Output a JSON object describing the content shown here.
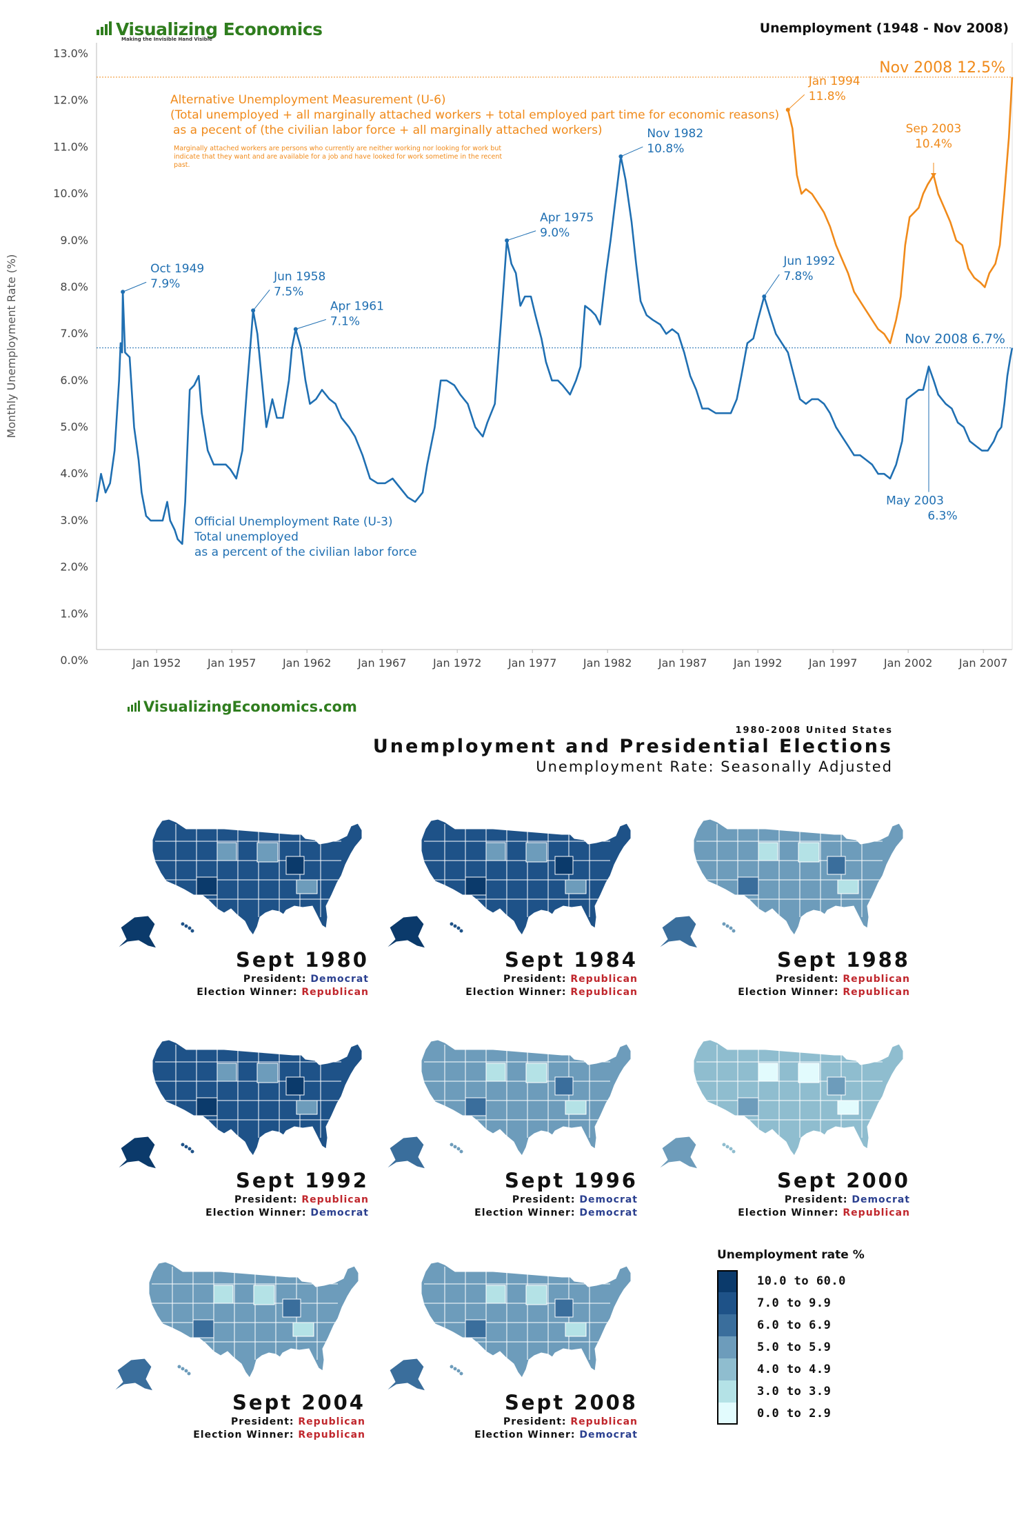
{
  "header": {
    "logo_text": "Visualizing Economics",
    "logo_tagline": "Making the Invisible Hand Visible",
    "chart_title": "Unemployment (1948 - Nov 2008)"
  },
  "chart_data": {
    "type": "line",
    "ylabel": "Monthly Unemployment Rate (%)",
    "ylim": [
      0,
      13
    ],
    "y_ticks": [
      "0.0%",
      "1.0%",
      "2.0%",
      "3.0%",
      "4.0%",
      "5.0%",
      "6.0%",
      "7.0%",
      "8.0%",
      "9.0%",
      "10.0%",
      "11.0%",
      "12.0%",
      "13.0%"
    ],
    "x_ticks": [
      "Jan 1952",
      "Jan 1957",
      "Jan 1962",
      "Jan 1967",
      "Jan 1972",
      "Jan 1977",
      "Jan 1982",
      "Jan 1987",
      "Jan 1992",
      "Jan 1997",
      "Jan 2002",
      "Jan 2007"
    ],
    "x_tick_years": [
      1952,
      1957,
      1962,
      1967,
      1972,
      1977,
      1982,
      1987,
      1992,
      1997,
      2002,
      2007
    ],
    "xlim": [
      1948.0,
      2008.92
    ],
    "series": [
      {
        "color": "#1f6fb2",
        "points": [
          [
            1948.0,
            3.4
          ],
          [
            1948.3,
            4.0
          ],
          [
            1948.6,
            3.6
          ],
          [
            1948.9,
            3.8
          ],
          [
            1949.2,
            4.5
          ],
          [
            1949.5,
            6.0
          ],
          [
            1949.6,
            6.8
          ],
          [
            1949.7,
            6.6
          ],
          [
            1949.75,
            7.9
          ],
          [
            1949.9,
            6.6
          ],
          [
            1950.2,
            6.5
          ],
          [
            1950.5,
            5.0
          ],
          [
            1950.8,
            4.3
          ],
          [
            1951.0,
            3.6
          ],
          [
            1951.3,
            3.1
          ],
          [
            1951.6,
            3.0
          ],
          [
            1952.0,
            3.0
          ],
          [
            1952.4,
            3.0
          ],
          [
            1952.7,
            3.4
          ],
          [
            1952.9,
            3.0
          ],
          [
            1953.2,
            2.8
          ],
          [
            1953.4,
            2.6
          ],
          [
            1953.7,
            2.5
          ],
          [
            1953.9,
            3.4
          ],
          [
            1954.2,
            5.8
          ],
          [
            1954.5,
            5.9
          ],
          [
            1954.8,
            6.1
          ],
          [
            1955.0,
            5.3
          ],
          [
            1955.4,
            4.5
          ],
          [
            1955.8,
            4.2
          ],
          [
            1956.2,
            4.2
          ],
          [
            1956.6,
            4.2
          ],
          [
            1956.9,
            4.1
          ],
          [
            1957.3,
            3.9
          ],
          [
            1957.7,
            4.5
          ],
          [
            1958.0,
            5.8
          ],
          [
            1958.3,
            7.0
          ],
          [
            1958.42,
            7.5
          ],
          [
            1958.7,
            7.0
          ],
          [
            1959.0,
            6.0
          ],
          [
            1959.3,
            5.0
          ],
          [
            1959.7,
            5.6
          ],
          [
            1960.0,
            5.2
          ],
          [
            1960.4,
            5.2
          ],
          [
            1960.8,
            6.0
          ],
          [
            1961.0,
            6.7
          ],
          [
            1961.25,
            7.1
          ],
          [
            1961.6,
            6.7
          ],
          [
            1961.9,
            6.0
          ],
          [
            1962.2,
            5.5
          ],
          [
            1962.6,
            5.6
          ],
          [
            1963.0,
            5.8
          ],
          [
            1963.5,
            5.6
          ],
          [
            1963.9,
            5.5
          ],
          [
            1964.3,
            5.2
          ],
          [
            1964.8,
            5.0
          ],
          [
            1965.2,
            4.8
          ],
          [
            1965.7,
            4.4
          ],
          [
            1966.2,
            3.9
          ],
          [
            1966.7,
            3.8
          ],
          [
            1967.2,
            3.8
          ],
          [
            1967.7,
            3.9
          ],
          [
            1968.2,
            3.7
          ],
          [
            1968.7,
            3.5
          ],
          [
            1969.2,
            3.4
          ],
          [
            1969.7,
            3.6
          ],
          [
            1970.0,
            4.2
          ],
          [
            1970.5,
            5.0
          ],
          [
            1970.9,
            6.0
          ],
          [
            1971.3,
            6.0
          ],
          [
            1971.8,
            5.9
          ],
          [
            1972.2,
            5.7
          ],
          [
            1972.7,
            5.5
          ],
          [
            1973.2,
            5.0
          ],
          [
            1973.7,
            4.8
          ],
          [
            1974.0,
            5.1
          ],
          [
            1974.5,
            5.5
          ],
          [
            1974.9,
            7.2
          ],
          [
            1975.1,
            8.1
          ],
          [
            1975.3,
            9.0
          ],
          [
            1975.6,
            8.5
          ],
          [
            1975.9,
            8.3
          ],
          [
            1976.2,
            7.6
          ],
          [
            1976.5,
            7.8
          ],
          [
            1976.9,
            7.8
          ],
          [
            1977.2,
            7.4
          ],
          [
            1977.6,
            6.9
          ],
          [
            1977.9,
            6.4
          ],
          [
            1978.3,
            6.0
          ],
          [
            1978.7,
            6.0
          ],
          [
            1979.0,
            5.9
          ],
          [
            1979.5,
            5.7
          ],
          [
            1979.9,
            6.0
          ],
          [
            1980.2,
            6.3
          ],
          [
            1980.5,
            7.6
          ],
          [
            1980.9,
            7.5
          ],
          [
            1981.2,
            7.4
          ],
          [
            1981.5,
            7.2
          ],
          [
            1981.9,
            8.3
          ],
          [
            1982.2,
            9.0
          ],
          [
            1982.5,
            9.8
          ],
          [
            1982.88,
            10.8
          ],
          [
            1983.2,
            10.3
          ],
          [
            1983.6,
            9.4
          ],
          [
            1983.9,
            8.5
          ],
          [
            1984.2,
            7.7
          ],
          [
            1984.6,
            7.4
          ],
          [
            1985.0,
            7.3
          ],
          [
            1985.5,
            7.2
          ],
          [
            1985.9,
            7.0
          ],
          [
            1986.3,
            7.1
          ],
          [
            1986.7,
            7.0
          ],
          [
            1987.1,
            6.6
          ],
          [
            1987.5,
            6.1
          ],
          [
            1987.9,
            5.8
          ],
          [
            1988.3,
            5.4
          ],
          [
            1988.7,
            5.4
          ],
          [
            1989.2,
            5.3
          ],
          [
            1989.7,
            5.3
          ],
          [
            1990.2,
            5.3
          ],
          [
            1990.6,
            5.6
          ],
          [
            1990.9,
            6.1
          ],
          [
            1991.3,
            6.8
          ],
          [
            1991.7,
            6.9
          ],
          [
            1992.0,
            7.3
          ],
          [
            1992.42,
            7.8
          ],
          [
            1992.8,
            7.4
          ],
          [
            1993.2,
            7.0
          ],
          [
            1993.6,
            6.8
          ],
          [
            1994.0,
            6.6
          ],
          [
            1994.4,
            6.1
          ],
          [
            1994.8,
            5.6
          ],
          [
            1995.2,
            5.5
          ],
          [
            1995.6,
            5.6
          ],
          [
            1996.0,
            5.6
          ],
          [
            1996.4,
            5.5
          ],
          [
            1996.8,
            5.3
          ],
          [
            1997.2,
            5.0
          ],
          [
            1997.6,
            4.8
          ],
          [
            1998.0,
            4.6
          ],
          [
            1998.4,
            4.4
          ],
          [
            1998.8,
            4.4
          ],
          [
            1999.2,
            4.3
          ],
          [
            1999.6,
            4.2
          ],
          [
            2000.0,
            4.0
          ],
          [
            2000.4,
            4.0
          ],
          [
            2000.8,
            3.9
          ],
          [
            2001.2,
            4.2
          ],
          [
            2001.6,
            4.7
          ],
          [
            2001.9,
            5.6
          ],
          [
            2002.3,
            5.7
          ],
          [
            2002.7,
            5.8
          ],
          [
            2003.0,
            5.8
          ],
          [
            2003.37,
            6.3
          ],
          [
            2003.7,
            6.0
          ],
          [
            2004.0,
            5.7
          ],
          [
            2004.5,
            5.5
          ],
          [
            2004.9,
            5.4
          ],
          [
            2005.3,
            5.1
          ],
          [
            2005.7,
            5.0
          ],
          [
            2006.1,
            4.7
          ],
          [
            2006.5,
            4.6
          ],
          [
            2006.9,
            4.5
          ],
          [
            2007.3,
            4.5
          ],
          [
            2007.7,
            4.7
          ],
          [
            2007.95,
            4.9
          ],
          [
            2008.2,
            5.0
          ],
          [
            2008.4,
            5.5
          ],
          [
            2008.6,
            6.1
          ],
          [
            2008.8,
            6.5
          ],
          [
            2008.92,
            6.7
          ]
        ]
      },
      {
        "color": "#f08a1a",
        "points": [
          [
            1994.0,
            11.8
          ],
          [
            1994.3,
            11.4
          ],
          [
            1994.6,
            10.4
          ],
          [
            1994.9,
            10.0
          ],
          [
            1995.2,
            10.1
          ],
          [
            1995.6,
            10.0
          ],
          [
            1996.0,
            9.8
          ],
          [
            1996.4,
            9.6
          ],
          [
            1996.8,
            9.3
          ],
          [
            1997.2,
            8.9
          ],
          [
            1997.6,
            8.6
          ],
          [
            1998.0,
            8.3
          ],
          [
            1998.4,
            7.9
          ],
          [
            1998.8,
            7.7
          ],
          [
            1999.2,
            7.5
          ],
          [
            1999.6,
            7.3
          ],
          [
            2000.0,
            7.1
          ],
          [
            2000.4,
            7.0
          ],
          [
            2000.8,
            6.8
          ],
          [
            2001.2,
            7.3
          ],
          [
            2001.5,
            7.8
          ],
          [
            2001.8,
            8.9
          ],
          [
            2002.1,
            9.5
          ],
          [
            2002.4,
            9.6
          ],
          [
            2002.7,
            9.7
          ],
          [
            2003.0,
            10.0
          ],
          [
            2003.3,
            10.2
          ],
          [
            2003.69,
            10.4
          ],
          [
            2004.0,
            10.0
          ],
          [
            2004.4,
            9.7
          ],
          [
            2004.8,
            9.4
          ],
          [
            2005.2,
            9.0
          ],
          [
            2005.6,
            8.9
          ],
          [
            2006.0,
            8.4
          ],
          [
            2006.4,
            8.2
          ],
          [
            2006.8,
            8.1
          ],
          [
            2007.1,
            8.0
          ],
          [
            2007.4,
            8.3
          ],
          [
            2007.8,
            8.5
          ],
          [
            2008.1,
            8.9
          ],
          [
            2008.4,
            10.0
          ],
          [
            2008.7,
            11.2
          ],
          [
            2008.92,
            12.5
          ]
        ]
      }
    ],
    "annotations": [
      {
        "label": "Oct 1949",
        "value": "7.9%",
        "x": 1949.75,
        "y": 7.9,
        "color": "#1f6fb2"
      },
      {
        "label": "Jun 1958",
        "value": "7.5%",
        "x": 1958.42,
        "y": 7.5,
        "color": "#1f6fb2"
      },
      {
        "label": "Apr 1961",
        "value": "7.1%",
        "x": 1961.25,
        "y": 7.1,
        "color": "#1f6fb2"
      },
      {
        "label": "Apr 1975",
        "value": "9.0%",
        "x": 1975.3,
        "y": 9.0,
        "color": "#1f6fb2"
      },
      {
        "label": "Nov 1982",
        "value": "10.8%",
        "x": 1982.88,
        "y": 10.8,
        "color": "#1f6fb2"
      },
      {
        "label": "Jun 1992",
        "value": "7.8%",
        "x": 1992.42,
        "y": 7.8,
        "color": "#1f6fb2"
      },
      {
        "label": "May 2003",
        "value": "6.3%",
        "x": 2003.37,
        "y": 6.3,
        "color": "#1f6fb2"
      },
      {
        "label": "Jan 1994",
        "value": "11.8%",
        "x": 1994.0,
        "y": 11.8,
        "color": "#f08a1a"
      },
      {
        "label": "Sep 2003",
        "value": "10.4%",
        "x": 2003.69,
        "y": 10.4,
        "color": "#f08a1a"
      }
    ],
    "reference_lines": [
      {
        "label": "Nov 2008 12.5%",
        "y": 12.5,
        "color": "#f08a1a"
      },
      {
        "label": "Nov 2008 6.7%",
        "y": 6.7,
        "color": "#1f6fb2"
      }
    ],
    "notes": {
      "u6_title": "Alternative Unemployment Measurement (U-6)",
      "u6_line2": "(Total unemployed + all marginally attached workers + total employed part time for economic reasons)",
      "u6_line3": "as a pecent of (the civilian labor force + all marginally attached workers)",
      "u6_small1": "Marginally attached workers are persons who currently are neither working nor looking for work but",
      "u6_small2": "indicate that they want and are available for a job and have looked for work sometime in the recent",
      "u6_small3": "past.",
      "u3_title": "Official Unemployment Rate (U-3)",
      "u3_line2": "Total unemployed",
      "u3_line3": "as a percent of the civilian labor force"
    }
  },
  "second": {
    "logo_text": "VisualizingEconomics.com",
    "subtitle1": "1980-2008 United States",
    "subtitle2": "Unemployment and Presidential Elections",
    "subtitle3": "Unemployment Rate: Seasonally Adjusted"
  },
  "maps": [
    {
      "date": "Sept 1980",
      "president_label": "President:",
      "president": "Democrat",
      "president_party": "dem",
      "winner_label": "Election Winner:",
      "winner": "Republican",
      "winner_party": "rep",
      "shade": 5
    },
    {
      "date": "Sept 1984",
      "president_label": "President:",
      "president": "Republican",
      "president_party": "rep",
      "winner_label": "Election Winner:",
      "winner": "Republican",
      "winner_party": "rep",
      "shade": 5
    },
    {
      "date": "Sept 1988",
      "president_label": "President:",
      "president": "Republican",
      "president_party": "rep",
      "winner_label": "Election Winner:",
      "winner": "Republican",
      "winner_party": "rep",
      "shade": 3
    },
    {
      "date": "Sept 1992",
      "president_label": "President:",
      "president": "Republican",
      "president_party": "rep",
      "winner_label": "Election Winner:",
      "winner": "Democrat",
      "winner_party": "dem",
      "shade": 5
    },
    {
      "date": "Sept 1996",
      "president_label": "President:",
      "president": "Democrat",
      "president_party": "dem",
      "winner_label": "Election Winner:",
      "winner": "Democrat",
      "winner_party": "dem",
      "shade": 3
    },
    {
      "date": "Sept 2000",
      "president_label": "President:",
      "president": "Democrat",
      "president_party": "dem",
      "winner_label": "Election Winner:",
      "winner": "Republican",
      "winner_party": "rep",
      "shade": 2
    },
    {
      "date": "Sept 2004",
      "president_label": "President:",
      "president": "Republican",
      "president_party": "rep",
      "winner_label": "Election Winner:",
      "winner": "Republican",
      "winner_party": "rep",
      "shade": 3
    },
    {
      "date": "Sept 2008",
      "president_label": "President:",
      "president": "Republican",
      "president_party": "rep",
      "winner_label": "Election Winner:",
      "winner": "Democrat",
      "winner_party": "dem",
      "shade": 3
    }
  ],
  "legend": {
    "title": "Unemployment rate %",
    "items": [
      {
        "label": "10.0 to 60.0",
        "color": "#0b3a6b"
      },
      {
        "label": "7.0 to 9.9",
        "color": "#1e5288"
      },
      {
        "label": "6.0 to 6.9",
        "color": "#3a6e9c"
      },
      {
        "label": "5.0 to 5.9",
        "color": "#6d9cbb"
      },
      {
        "label": "4.0 to 4.9",
        "color": "#8fbdcf"
      },
      {
        "label": "3.0 to 3.9",
        "color": "#b4e2e6"
      },
      {
        "label": "0.0 to 2.9",
        "color": "#e2fbfd"
      }
    ]
  }
}
